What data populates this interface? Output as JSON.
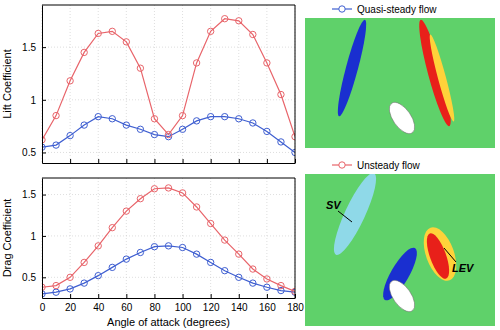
{
  "chart_data": [
    {
      "type": "line",
      "y_label": "Lift Coefficient",
      "x": [
        0,
        10,
        20,
        30,
        40,
        50,
        60,
        70,
        80,
        90,
        100,
        110,
        120,
        130,
        140,
        150,
        160,
        170,
        180
      ],
      "series": [
        {
          "name": "Quasi-steady flow",
          "color": "#3f5fd1",
          "marker": "circle",
          "line_style": "solid",
          "values": [
            0.55,
            0.57,
            0.66,
            0.76,
            0.84,
            0.82,
            0.76,
            0.72,
            0.67,
            0.65,
            0.72,
            0.8,
            0.84,
            0.84,
            0.82,
            0.78,
            0.7,
            0.6,
            0.5
          ]
        },
        {
          "name": "Unsteady flow",
          "color": "#e8646a",
          "marker": "circle",
          "line_style": "solid",
          "values": [
            0.62,
            0.85,
            1.18,
            1.45,
            1.63,
            1.65,
            1.55,
            1.3,
            0.82,
            0.67,
            0.85,
            1.35,
            1.65,
            1.77,
            1.75,
            1.62,
            1.35,
            1.05,
            0.65
          ]
        }
      ],
      "xlim": [
        0,
        180
      ],
      "xticks": [
        0,
        20,
        40,
        60,
        80,
        100,
        120,
        140,
        160,
        180
      ],
      "ylim": [
        0.4,
        1.9
      ],
      "yticks": [
        0.5,
        1,
        1.5
      ],
      "grid": true,
      "tick_labels": "y",
      "legend": "right"
    },
    {
      "type": "line",
      "y_label": "Drag Coefficient",
      "x_label": "Angle of attack (degrees)",
      "x": [
        0,
        10,
        20,
        30,
        40,
        50,
        60,
        70,
        80,
        90,
        100,
        110,
        120,
        130,
        140,
        150,
        160,
        170,
        180
      ],
      "series": [
        {
          "color": "#3f5fd1",
          "marker": "circle",
          "line_style": "solid",
          "values": [
            0.3,
            0.32,
            0.36,
            0.43,
            0.52,
            0.62,
            0.72,
            0.8,
            0.87,
            0.88,
            0.86,
            0.78,
            0.68,
            0.58,
            0.5,
            0.43,
            0.38,
            0.34,
            0.32
          ]
        },
        {
          "color": "#e8646a",
          "marker": "circle",
          "line_style": "solid",
          "values": [
            0.38,
            0.4,
            0.5,
            0.68,
            0.88,
            1.1,
            1.3,
            1.45,
            1.57,
            1.58,
            1.52,
            1.35,
            1.15,
            0.95,
            0.78,
            0.6,
            0.48,
            0.4,
            0.33
          ]
        }
      ],
      "xlim": [
        0,
        180
      ],
      "xticks": [
        0,
        20,
        40,
        60,
        80,
        100,
        120,
        140,
        160,
        180
      ],
      "ylim": [
        0.25,
        1.7
      ],
      "yticks": [
        0.5,
        1,
        1.5
      ],
      "grid": true
    }
  ],
  "flow_field_annotations": [
    "SV",
    "LEV"
  ]
}
